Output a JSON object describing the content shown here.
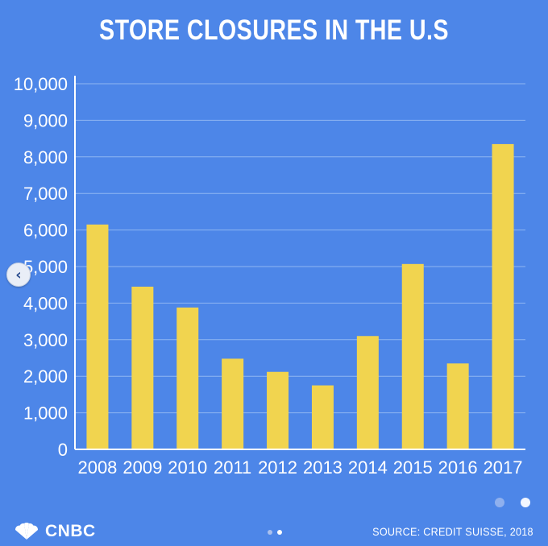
{
  "colors": {
    "background": "#4d86e8",
    "bar": "#f1d44f",
    "grid": "#8fb5f2",
    "axis": "#ffffff",
    "text": "#ffffff"
  },
  "nav": {
    "prev_icon": "chevron-left-icon"
  },
  "pager": {
    "count": 2,
    "active_index": 1
  },
  "footer": {
    "logo_icon": "peacock-icon",
    "logo_text": "CNBC",
    "source": "SOURCE: CREDIT SUISSE, 2018"
  },
  "chart_data": {
    "type": "bar",
    "title": "STORE CLOSURES IN THE U.S",
    "categories": [
      "2008",
      "2009",
      "2010",
      "2011",
      "2012",
      "2013",
      "2014",
      "2015",
      "2016",
      "2017"
    ],
    "values": [
      6150,
      4450,
      3880,
      2480,
      2120,
      1750,
      3100,
      5070,
      2350,
      8350
    ],
    "ylim": [
      0,
      10000
    ],
    "yticks": [
      0,
      1000,
      2000,
      3000,
      4000,
      5000,
      6000,
      7000,
      8000,
      9000,
      10000
    ],
    "ytick_labels": [
      "0",
      "1,000",
      "2,000",
      "3,000",
      "4,000",
      "5,000",
      "6,000",
      "7,000",
      "8,000",
      "9,000",
      "10,000"
    ],
    "grid": true,
    "xlabel": "",
    "ylabel": ""
  }
}
